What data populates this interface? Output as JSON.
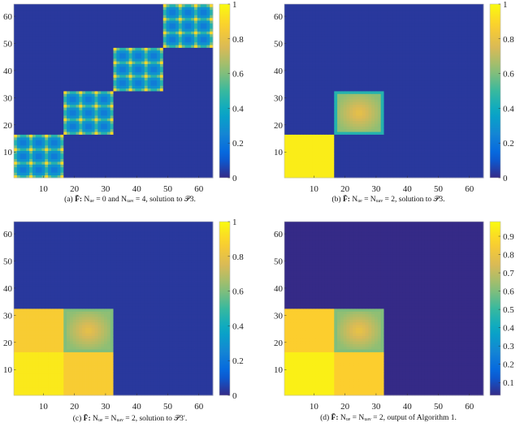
{
  "chart_data": [
    {
      "type": "heatmap",
      "id": "a",
      "caption": {
        "label": "(a)",
        "matrix": "F̆:",
        "text": "Nᵤₑ = 0 and Nᵤₐᵥ = 4, solution to 𝒫3."
      },
      "x_ticks": [
        "10",
        "20",
        "30",
        "40",
        "50",
        "60"
      ],
      "y_ticks": [
        "10",
        "20",
        "30",
        "40",
        "50",
        "60"
      ],
      "size": 64,
      "colormap": "parula",
      "clim": [
        0,
        1
      ],
      "colorbar_ticks": [
        "0",
        "0.2",
        "0.4",
        "0.6",
        "0.8",
        "1"
      ],
      "background_value": 0.03,
      "blocks": [
        {
          "rows": [
            1,
            16
          ],
          "cols": [
            1,
            16
          ],
          "pattern": "grid",
          "peak_positions": [
            1,
            6,
            11,
            16
          ],
          "peak_value": 0.9,
          "line_value": 0.45,
          "interior_value": 0.22
        },
        {
          "rows": [
            17,
            32
          ],
          "cols": [
            17,
            32
          ],
          "pattern": "grid",
          "peak_positions": [
            1,
            6,
            11,
            16
          ],
          "peak_value": 0.9,
          "line_value": 0.45,
          "interior_value": 0.22
        },
        {
          "rows": [
            33,
            48
          ],
          "cols": [
            33,
            48
          ],
          "pattern": "grid",
          "peak_positions": [
            1,
            6,
            11,
            16
          ],
          "peak_value": 0.9,
          "line_value": 0.45,
          "interior_value": 0.22
        },
        {
          "rows": [
            49,
            64
          ],
          "cols": [
            49,
            64
          ],
          "pattern": "grid",
          "peak_positions": [
            1,
            6,
            11,
            16
          ],
          "peak_value": 0.9,
          "line_value": 0.45,
          "interior_value": 0.22
        }
      ]
    },
    {
      "type": "heatmap",
      "id": "b",
      "caption": {
        "label": "(b)",
        "matrix": "F̄:",
        "text": "Nᵤₑ = Nᵤₐᵥ = 2, solution to 𝒫3."
      },
      "x_ticks": [
        "10",
        "20",
        "30",
        "40",
        "50",
        "60"
      ],
      "y_ticks": [
        "10",
        "20",
        "30",
        "40",
        "50",
        "60"
      ],
      "size": 64,
      "colormap": "parula",
      "clim": [
        0,
        1
      ],
      "colorbar_ticks": [
        "0",
        "0.2",
        "0.4",
        "0.6",
        "0.8",
        "1"
      ],
      "background_value": 0.03,
      "blocks": [
        {
          "rows": [
            1,
            16
          ],
          "cols": [
            1,
            16
          ],
          "pattern": "flat",
          "value": 0.96,
          "edge_value": 0.5
        },
        {
          "rows": [
            17,
            32
          ],
          "cols": [
            17,
            32
          ],
          "pattern": "radial",
          "value": 0.62,
          "center_value": 0.8,
          "edge_value": 0.45
        }
      ]
    },
    {
      "type": "heatmap",
      "id": "c",
      "caption": {
        "label": "(c)",
        "matrix": "F̄:",
        "text": "Nᵤₑ = Nᵤₐᵥ = 2, solution to 𝒫3′."
      },
      "x_ticks": [
        "10",
        "20",
        "30",
        "40",
        "50",
        "60"
      ],
      "y_ticks": [
        "10",
        "20",
        "30",
        "40",
        "50",
        "60"
      ],
      "size": 64,
      "colormap": "parula",
      "clim": [
        0,
        1
      ],
      "colorbar_ticks": [
        "0",
        "0.2",
        "0.4",
        "0.6",
        "0.8",
        "1"
      ],
      "background_value": 0.03,
      "blocks": [
        {
          "rows": [
            1,
            16
          ],
          "cols": [
            1,
            16
          ],
          "pattern": "flat",
          "value": 0.95
        },
        {
          "rows": [
            17,
            32
          ],
          "cols": [
            1,
            16
          ],
          "pattern": "flat",
          "value": 0.86
        },
        {
          "rows": [
            1,
            16
          ],
          "cols": [
            17,
            32
          ],
          "pattern": "flat",
          "value": 0.86
        },
        {
          "rows": [
            17,
            32
          ],
          "cols": [
            17,
            32
          ],
          "pattern": "radial",
          "value": 0.62,
          "center_value": 0.8,
          "edge_value": 0.6
        }
      ]
    },
    {
      "type": "heatmap",
      "id": "d",
      "caption": {
        "label": "(d)",
        "matrix": "F̄:",
        "text": "Nᵤₑ = Nᵤₐᵥ = 2, output of Algorithm 1."
      },
      "x_ticks": [
        "10",
        "20",
        "30",
        "40",
        "50",
        "60"
      ],
      "y_ticks": [
        "10",
        "20",
        "30",
        "40",
        "50",
        "60"
      ],
      "size": 64,
      "colormap": "parula",
      "clim": [
        0.03,
        0.98
      ],
      "colorbar_ticks": [
        "0.1",
        "0.2",
        "0.3",
        "0.4",
        "0.5",
        "0.6",
        "0.7",
        "0.8",
        "0.9"
      ],
      "background_value": 0.03,
      "blocks": [
        {
          "rows": [
            1,
            16
          ],
          "cols": [
            1,
            16
          ],
          "pattern": "flat",
          "value": 0.95
        },
        {
          "rows": [
            17,
            32
          ],
          "cols": [
            1,
            16
          ],
          "pattern": "flat",
          "value": 0.86
        },
        {
          "rows": [
            1,
            16
          ],
          "cols": [
            17,
            32
          ],
          "pattern": "flat",
          "value": 0.86
        },
        {
          "rows": [
            17,
            32
          ],
          "cols": [
            17,
            32
          ],
          "pattern": "radial",
          "value": 0.62,
          "center_value": 0.8,
          "edge_value": 0.6
        }
      ]
    }
  ]
}
